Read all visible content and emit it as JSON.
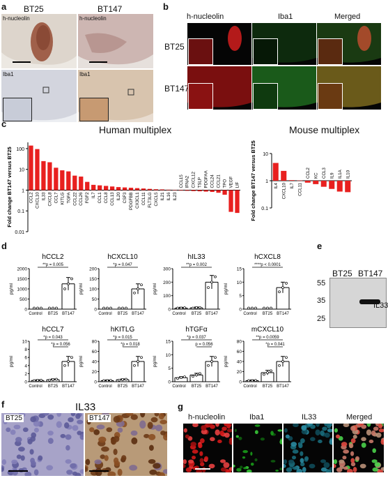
{
  "panels": {
    "a": {
      "letter": "a",
      "labels": [
        "BT25",
        "BT147",
        "h-nucleolin",
        "h-nucleolin",
        "Iba1",
        "Iba1"
      ]
    },
    "b": {
      "letter": "b",
      "columns": [
        "h-nucleolin",
        "Iba1",
        "Merged"
      ],
      "rows": [
        "BT25",
        "BT147"
      ]
    },
    "c": {
      "letter": "c",
      "human_title": "Human multiplex",
      "mouse_title": "Mouse multiplex"
    },
    "d": {
      "letter": "d"
    },
    "e": {
      "letter": "e",
      "lanes": [
        "BT25",
        "BT147"
      ],
      "markers": [
        "55",
        "35",
        "25"
      ],
      "band_label": "IL33"
    },
    "f": {
      "letter": "f",
      "title": "IL33",
      "labels": [
        "BT25",
        "BT147"
      ]
    },
    "g": {
      "letter": "g",
      "columns": [
        "h-nucleolin",
        "Iba1",
        "IL33",
        "Merged"
      ]
    }
  },
  "chart_data": [
    {
      "id": "human-multiplex",
      "type": "bar",
      "title": "Human multiplex",
      "ylabel": "Fold change BT147 versus BT25",
      "yscale": "log",
      "ylim": [
        0.01,
        200
      ],
      "yticks": [
        "100",
        "10",
        "1",
        "0.1",
        "0.01"
      ],
      "categories": [
        "CCL2",
        "CXCL10",
        "IL33",
        "CXCL8",
        "CCL7",
        "KITLG",
        "TGFA",
        "CCL22",
        "CCL26",
        "FGF2",
        "IL7",
        "CCL1",
        "CCL8",
        "CCL13",
        "IL20",
        "CSF3",
        "PDGFBB",
        "CX3CL1",
        "CCL11",
        "FLT3LG",
        "CXCL5",
        "IL21",
        "IL16",
        "IL23",
        "CCL15",
        "IFNA2",
        "CXCL12",
        "TSLP",
        "PDGFAA",
        "CCL24",
        "CCL21",
        "TPO",
        "VEGF",
        "LIF"
      ],
      "values": [
        140,
        95,
        25,
        22,
        12,
        9,
        8,
        5,
        4.5,
        2.5,
        1.8,
        1.7,
        1.6,
        1.5,
        1.4,
        1.35,
        1.3,
        1.25,
        1.2,
        1.15,
        1.1,
        1.08,
        1.05,
        1.03,
        0.95,
        0.93,
        0.9,
        0.88,
        0.85,
        0.82,
        0.75,
        0.6,
        0.09,
        0.08
      ]
    },
    {
      "id": "mouse-multiplex",
      "type": "bar",
      "title": "Mouse multiplex",
      "ylabel": "Fold change BT147 versus BT25",
      "yscale": "log",
      "ylim": [
        0.1,
        10
      ],
      "yticks": [
        "10",
        "1",
        "0.1"
      ],
      "categories": [
        "IL4",
        "CXCL10",
        "IL7",
        "CCL11",
        "CCL2",
        "KC",
        "CCL3",
        "IL9",
        "IL1A",
        "IL10"
      ],
      "values": [
        4.5,
        2.3,
        1.05,
        1.02,
        0.85,
        0.75,
        0.6,
        0.5,
        0.4,
        0.38
      ]
    },
    {
      "id": "hCCL2",
      "type": "bar",
      "title": "hCCL2",
      "ylabel": "pg/ml",
      "categories": [
        "Control",
        "BT25",
        "BT147"
      ],
      "values": [
        0,
        0,
        1250
      ],
      "ylim": [
        0,
        2000
      ],
      "yticks": [
        "0",
        "500",
        "1000",
        "1500",
        "2000"
      ],
      "annotation": "**p = 0.005"
    },
    {
      "id": "hCXCL10",
      "type": "bar",
      "title": "hCXCL10",
      "ylabel": "pg/ml",
      "categories": [
        "Control",
        "BT25",
        "BT147"
      ],
      "values": [
        0,
        0,
        100
      ],
      "ylim": [
        0,
        200
      ],
      "yticks": [
        "0",
        "50",
        "100",
        "150",
        "200"
      ],
      "annotation": "*p = 0.047"
    },
    {
      "id": "hIL33",
      "type": "bar",
      "title": "hIL33",
      "ylabel": "pg/ml",
      "categories": [
        "Control",
        "BT25",
        "BT147"
      ],
      "values": [
        8,
        10,
        200
      ],
      "ylim": [
        0,
        300
      ],
      "yticks": [
        "0",
        "100",
        "200",
        "300"
      ],
      "annotation": "**p = 0.002"
    },
    {
      "id": "hCXCL8",
      "type": "bar",
      "title": "hCXCL8",
      "ylabel": "pg/ml",
      "categories": [
        "Control",
        "BT25",
        "BT147"
      ],
      "values": [
        0,
        0,
        8
      ],
      "ylim": [
        0,
        15
      ],
      "yticks": [
        "0",
        "5",
        "10",
        "15"
      ],
      "annotation": "****p < 0.0001"
    },
    {
      "id": "hCCL7",
      "type": "bar",
      "title": "hCCL7",
      "ylabel": "pg/ml",
      "categories": [
        "Control",
        "BT25",
        "BT147"
      ],
      "values": [
        0.3,
        0.5,
        5
      ],
      "ylim": [
        0,
        10
      ],
      "yticks": [
        "0",
        "2",
        "4",
        "6",
        "8",
        "10"
      ],
      "annotation": "*p = 0.043",
      "annotation2": "*p = 0.056"
    },
    {
      "id": "hKITLG",
      "type": "bar",
      "title": "hKITLG",
      "ylabel": "pg/ml",
      "categories": [
        "Control",
        "BT25",
        "BT147"
      ],
      "values": [
        2,
        4,
        40
      ],
      "ylim": [
        0,
        80
      ],
      "yticks": [
        "0",
        "20",
        "40",
        "60",
        "80"
      ],
      "annotation": "*p = 0.015",
      "annotation2": "*p = 0.018"
    },
    {
      "id": "hTGFa",
      "type": "bar",
      "title": "hTGFα",
      "ylabel": "pg/ml",
      "categories": [
        "Control",
        "BT25",
        "BT147"
      ],
      "values": [
        1.5,
        2.5,
        7.5
      ],
      "ylim": [
        0,
        15
      ],
      "yticks": [
        "0",
        "5",
        "10",
        "15"
      ],
      "annotation": "*p = 0.037",
      "annotation2": "p = 0.056"
    },
    {
      "id": "mCXCL10",
      "type": "bar",
      "title": "mCXCL10",
      "ylabel": "pg/ml",
      "categories": [
        "Control",
        "BT25",
        "BT147"
      ],
      "values": [
        2,
        18,
        40
      ],
      "ylim": [
        0,
        80
      ],
      "yticks": [
        "0",
        "20",
        "40",
        "60",
        "80"
      ],
      "annotation": "**p = 0.0059",
      "annotation2": "*p = 0.041"
    }
  ]
}
